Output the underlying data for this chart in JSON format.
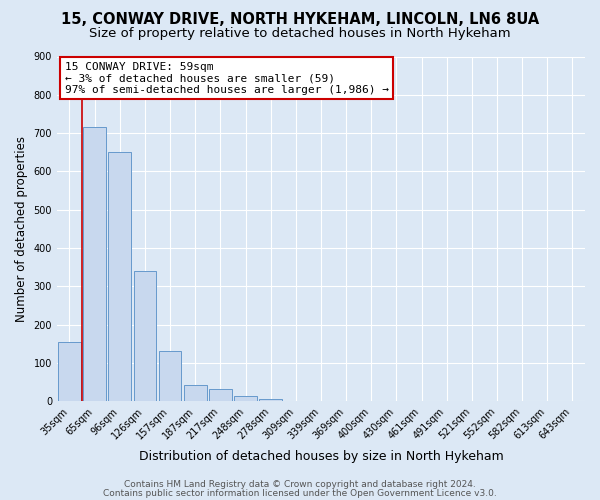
{
  "title1": "15, CONWAY DRIVE, NORTH HYKEHAM, LINCOLN, LN6 8UA",
  "title2": "Size of property relative to detached houses in North Hykeham",
  "xlabel": "Distribution of detached houses by size in North Hykeham",
  "ylabel": "Number of detached properties",
  "bar_labels": [
    "35sqm",
    "65sqm",
    "96sqm",
    "126sqm",
    "157sqm",
    "187sqm",
    "217sqm",
    "248sqm",
    "278sqm",
    "309sqm",
    "339sqm",
    "369sqm",
    "400sqm",
    "430sqm",
    "461sqm",
    "491sqm",
    "521sqm",
    "552sqm",
    "582sqm",
    "613sqm",
    "643sqm"
  ],
  "bar_values": [
    155,
    715,
    650,
    340,
    130,
    43,
    33,
    13,
    5,
    0,
    0,
    0,
    0,
    0,
    0,
    0,
    0,
    0,
    0,
    0,
    0
  ],
  "bar_color": "#c8d8ee",
  "bar_edge_color": "#6699cc",
  "annotation_box_text": "15 CONWAY DRIVE: 59sqm\n← 3% of detached houses are smaller (59)\n97% of semi-detached houses are larger (1,986) →",
  "annotation_box_color": "#ffffff",
  "annotation_box_edge_color": "#cc0000",
  "ylim": [
    0,
    900
  ],
  "yticks": [
    0,
    100,
    200,
    300,
    400,
    500,
    600,
    700,
    800,
    900
  ],
  "background_color": "#dce8f5",
  "plot_background_color": "#dce8f5",
  "grid_color": "#ffffff",
  "footer1": "Contains HM Land Registry data © Crown copyright and database right 2024.",
  "footer2": "Contains public sector information licensed under the Open Government Licence v3.0.",
  "vline_color": "#cc0000",
  "title1_fontsize": 10.5,
  "title2_fontsize": 9.5,
  "ylabel_fontsize": 8.5,
  "xlabel_fontsize": 9,
  "tick_fontsize": 7,
  "annot_fontsize": 8,
  "footer_fontsize": 6.5
}
